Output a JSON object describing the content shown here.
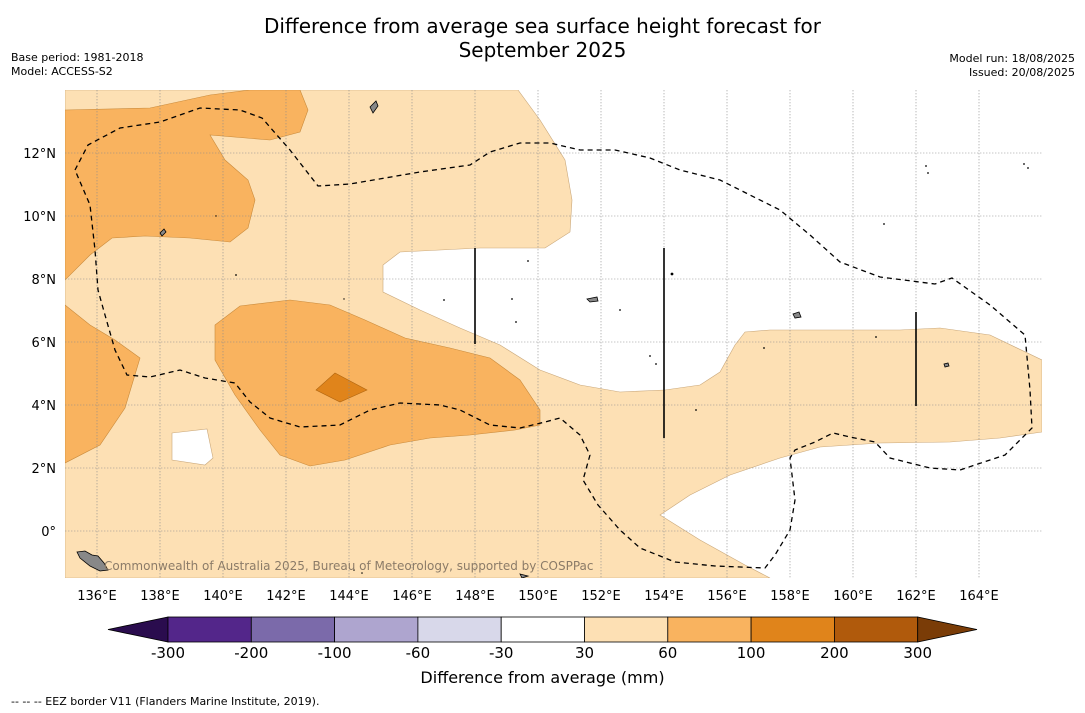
{
  "title_line1": "Difference from average sea surface height forecast for",
  "title_line2": "September 2025",
  "base_period": "Base period: 1981-2018",
  "model": "Model: ACCESS-S2",
  "model_run": "Model run: 18/08/2025",
  "issued": "Issued: 20/08/2025",
  "watermark": "Commonwealth of Australia 2025, Bureau of Meteorology, supported by COSPPac",
  "lon_labels": [
    "136°E",
    "138°E",
    "140°E",
    "142°E",
    "144°E",
    "146°E",
    "148°E",
    "150°E",
    "152°E",
    "154°E",
    "156°E",
    "158°E",
    "160°E",
    "162°E",
    "164°E"
  ],
  "lat_labels": [
    "12°N",
    "10°N",
    "8°N",
    "6°N",
    "4°N",
    "2°N",
    "0°"
  ],
  "colorbar": {
    "ticks": [
      "-300",
      "-200",
      "-100",
      "-60",
      "-30",
      "30",
      "60",
      "100",
      "200",
      "300"
    ],
    "colors": [
      "#2a0c4e",
      "#53268a",
      "#7b6aaa",
      "#aea5cf",
      "#d8d8ea",
      "#ffffff",
      "#fde0b4",
      "#f9b35f",
      "#e0841b",
      "#b05a0c",
      "#7a3c07"
    ],
    "title": "Difference from average (mm)"
  },
  "footnote": "--  --  -- EEZ border V11 (Flanders Marine Institute, 2019).",
  "legend": {
    "eez_line": "dashed black"
  }
}
